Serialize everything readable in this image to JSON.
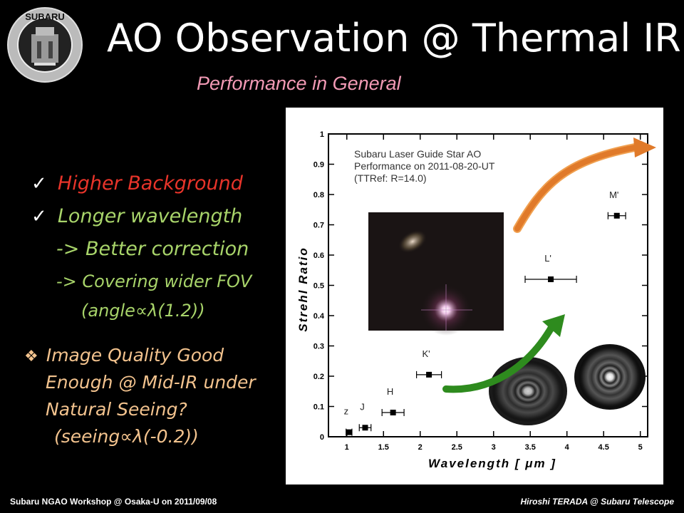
{
  "logo": {
    "top_text": "SUBARU",
    "ring_text": "National Astronomical Observatory of Japan"
  },
  "title": "AO Observation @ Thermal IR",
  "subtitle": "Performance in General",
  "bullets": {
    "b1": "Higher Background",
    "b2": "Longer wavelength",
    "b3": "-> Better correction",
    "b4": "-> Covering wider FOV",
    "b5": "(angle∝λ(1.2))",
    "q1": "Image Quality Good",
    "q2": "Enough @ Mid-IR under",
    "q3": "Natural Seeing?",
    "q4": "(seeing∝λ(-0.2))",
    "check_icon": "✓",
    "diamond_icon": "❖"
  },
  "footer": {
    "left": "Subaru NGAO Workshop @ Osaka-U on 2011/09/08",
    "right": "Hiroshi TERADA @ Subaru Telescope"
  },
  "colors": {
    "orange_arrow": "#e07a2a",
    "green_arrow": "#2e8b1e",
    "subtitle": "#f29ab5"
  },
  "chart_data": {
    "type": "scatter",
    "xlabel": "Wavelength [ μm ]",
    "ylabel": "Strehl Ratio",
    "xlim": [
      0.75,
      5.1
    ],
    "ylim": [
      0,
      1
    ],
    "xticks": [
      "1",
      "1.5",
      "2",
      "2.5",
      "3",
      "3.5",
      "4",
      "4.5",
      "5"
    ],
    "yticks": [
      "0",
      "0.1",
      "0.2",
      "0.3",
      "0.4",
      "0.5",
      "0.6",
      "0.7",
      "0.8",
      "0.9",
      "1"
    ],
    "annotation": [
      "Subaru Laser Guide Star AO",
      "Performance on 2011-08-20-UT",
      "(TTRef: R=14.0)"
    ],
    "points": [
      {
        "label": "z",
        "x": 1.03,
        "y": 0.015,
        "xerr": 0.04
      },
      {
        "label": "J",
        "x": 1.25,
        "y": 0.03,
        "xerr": 0.08
      },
      {
        "label": "H",
        "x": 1.63,
        "y": 0.08,
        "xerr": 0.15
      },
      {
        "label": "K'",
        "x": 2.12,
        "y": 0.205,
        "xerr": 0.17
      },
      {
        "label": "L'",
        "x": 3.78,
        "y": 0.52,
        "xerr": 0.35
      },
      {
        "label": "M'",
        "x": 4.68,
        "y": 0.73,
        "xerr": 0.12
      }
    ]
  }
}
